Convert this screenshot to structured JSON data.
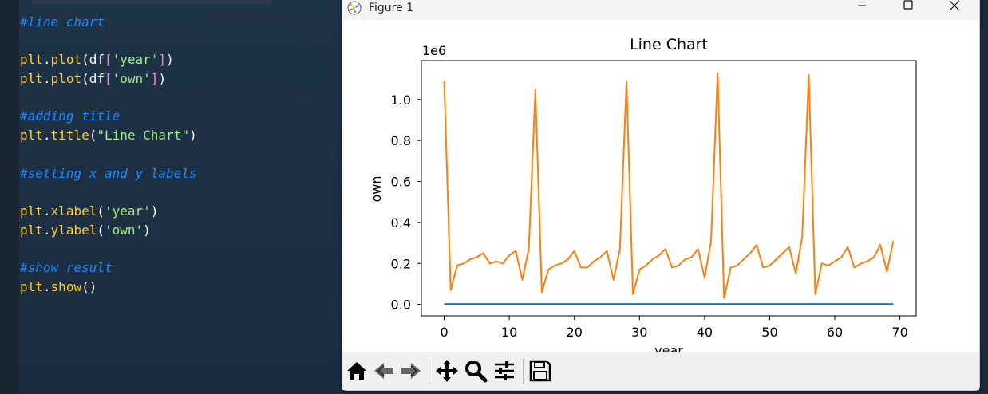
{
  "editor": {
    "lines": [
      [
        {
          "t": "#line chart",
          "c": "cmt"
        }
      ],
      [],
      [
        {
          "t": "plt",
          "c": "kw"
        },
        {
          "t": ".",
          "c": "wh"
        },
        {
          "t": "plot",
          "c": "kw"
        },
        {
          "t": "(df",
          "c": "wh"
        },
        {
          "t": "[",
          "c": "br"
        },
        {
          "t": "'year'",
          "c": "str"
        },
        {
          "t": "]",
          "c": "br"
        },
        {
          "t": ")",
          "c": "wh"
        }
      ],
      [
        {
          "t": "plt",
          "c": "kw"
        },
        {
          "t": ".",
          "c": "wh"
        },
        {
          "t": "plot",
          "c": "kw"
        },
        {
          "t": "(df",
          "c": "wh"
        },
        {
          "t": "[",
          "c": "br"
        },
        {
          "t": "'own'",
          "c": "str"
        },
        {
          "t": "]",
          "c": "br"
        },
        {
          "t": ")",
          "c": "wh"
        }
      ],
      [],
      [
        {
          "t": "#adding title",
          "c": "cmt"
        }
      ],
      [
        {
          "t": "plt",
          "c": "kw"
        },
        {
          "t": ".",
          "c": "wh"
        },
        {
          "t": "title",
          "c": "kw"
        },
        {
          "t": "(",
          "c": "wh"
        },
        {
          "t": "\"Line Chart\"",
          "c": "str"
        },
        {
          "t": ")",
          "c": "wh"
        }
      ],
      [],
      [
        {
          "t": "#setting x and y labels",
          "c": "cmt"
        }
      ],
      [],
      [
        {
          "t": "plt",
          "c": "kw"
        },
        {
          "t": ".",
          "c": "wh"
        },
        {
          "t": "xlabel",
          "c": "kw"
        },
        {
          "t": "(",
          "c": "wh"
        },
        {
          "t": "'year'",
          "c": "str"
        },
        {
          "t": ")",
          "c": "wh"
        }
      ],
      [
        {
          "t": "plt",
          "c": "kw"
        },
        {
          "t": ".",
          "c": "wh"
        },
        {
          "t": "ylabel",
          "c": "kw"
        },
        {
          "t": "(",
          "c": "wh"
        },
        {
          "t": "'own'",
          "c": "str"
        },
        {
          "t": ")",
          "c": "wh"
        }
      ],
      [],
      [
        {
          "t": "#show result",
          "c": "cmt"
        }
      ],
      [
        {
          "t": "plt",
          "c": "kw"
        },
        {
          "t": ".",
          "c": "wh"
        },
        {
          "t": "show",
          "c": "kw"
        },
        {
          "t": "()",
          "c": "wh"
        }
      ]
    ]
  },
  "window": {
    "title": "Figure 1",
    "controls": {
      "minimize": "minimize-icon",
      "maximize": "maximize-icon",
      "close": "close-icon"
    }
  },
  "toolbar": {
    "buttons": [
      "home-icon",
      "back-icon",
      "forward-icon",
      "pan-icon",
      "zoom-icon",
      "configure-subplots-icon",
      "save-icon"
    ]
  },
  "colors": {
    "series_year": "#1f77b4",
    "series_own": "#ff7f0e"
  },
  "chart_data": {
    "type": "line",
    "title": "Line Chart",
    "xlabel": "year",
    "ylabel": "own",
    "offset_text": "1e6",
    "xlim": [
      -3.5,
      72.5
    ],
    "ylim": [
      -0.056,
      1.19
    ],
    "xticks": [
      0,
      10,
      20,
      30,
      40,
      50,
      60,
      70
    ],
    "yticks": [
      0.0,
      0.2,
      0.4,
      0.6,
      0.8,
      1.0
    ],
    "ytick_labels": [
      "0.0",
      "0.2",
      "0.4",
      "0.6",
      "0.8",
      "1.0"
    ],
    "grid": false,
    "x": [
      0,
      1,
      2,
      3,
      4,
      5,
      6,
      7,
      8,
      9,
      10,
      11,
      12,
      13,
      14,
      15,
      16,
      17,
      18,
      19,
      20,
      21,
      22,
      23,
      24,
      25,
      26,
      27,
      28,
      29,
      30,
      31,
      32,
      33,
      34,
      35,
      36,
      37,
      38,
      39,
      40,
      41,
      42,
      43,
      44,
      45,
      46,
      47,
      48,
      49,
      50,
      51,
      52,
      53,
      54,
      55,
      56,
      57,
      58,
      59,
      60,
      61,
      62,
      63,
      64,
      65,
      66,
      67,
      68,
      69
    ],
    "series": [
      {
        "values": [
          0.002,
          0.002,
          0.002,
          0.002,
          0.002,
          0.002,
          0.002,
          0.002,
          0.002,
          0.002,
          0.002,
          0.002,
          0.002,
          0.002,
          0.002,
          0.002,
          0.002,
          0.002,
          0.002,
          0.002,
          0.002,
          0.002,
          0.002,
          0.002,
          0.002,
          0.002,
          0.002,
          0.002,
          0.002,
          0.002,
          0.002,
          0.002,
          0.002,
          0.002,
          0.002,
          0.002,
          0.002,
          0.002,
          0.002,
          0.002,
          0.002,
          0.002,
          0.002,
          0.002,
          0.002,
          0.002,
          0.002,
          0.002,
          0.002,
          0.002,
          0.002,
          0.002,
          0.002,
          0.002,
          0.002,
          0.002,
          0.002,
          0.002,
          0.002,
          0.002,
          0.002,
          0.002,
          0.002,
          0.002,
          0.002,
          0.002,
          0.002,
          0.002,
          0.002,
          0.002
        ]
      },
      {
        "values": [
          1.09,
          0.07,
          0.19,
          0.2,
          0.22,
          0.23,
          0.25,
          0.2,
          0.21,
          0.2,
          0.24,
          0.26,
          0.12,
          0.27,
          1.05,
          0.06,
          0.17,
          0.19,
          0.2,
          0.22,
          0.26,
          0.18,
          0.18,
          0.21,
          0.23,
          0.26,
          0.12,
          0.27,
          1.09,
          0.05,
          0.17,
          0.19,
          0.22,
          0.24,
          0.27,
          0.18,
          0.19,
          0.22,
          0.23,
          0.27,
          0.13,
          0.31,
          1.13,
          0.03,
          0.18,
          0.19,
          0.22,
          0.25,
          0.29,
          0.18,
          0.19,
          0.22,
          0.25,
          0.28,
          0.15,
          0.33,
          1.12,
          0.05,
          0.2,
          0.19,
          0.21,
          0.23,
          0.28,
          0.18,
          0.2,
          0.21,
          0.23,
          0.29,
          0.16,
          0.31
        ]
      }
    ]
  }
}
